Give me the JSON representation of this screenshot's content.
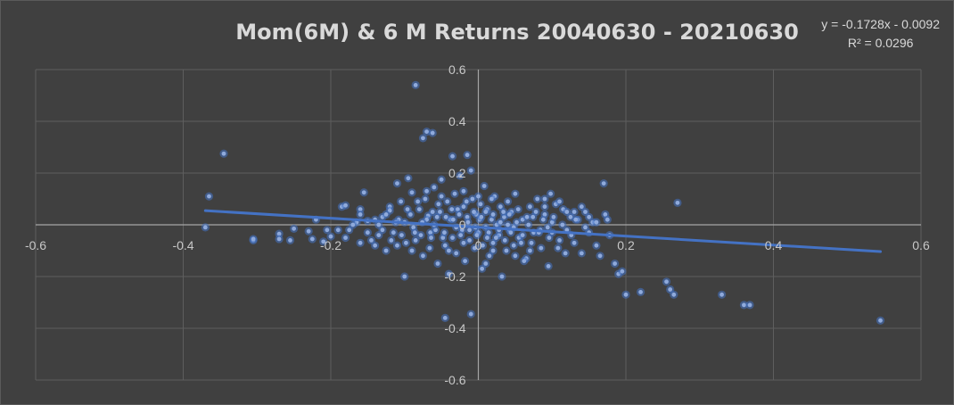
{
  "chart_data": {
    "type": "scatter",
    "title": "Mom(6M) & 6 M Returns 20040630 - 20210630",
    "xlabel": "",
    "ylabel": "",
    "xlim": [
      -0.6,
      0.6
    ],
    "ylim": [
      -0.6,
      0.6
    ],
    "x_ticks": [
      "-0.6",
      "-0.4",
      "-0.2",
      "0",
      "0.2",
      "0.4",
      "0.6"
    ],
    "y_ticks": [
      "-0.6",
      "-0.4",
      "-0.2",
      "0",
      "0.2",
      "0.4",
      "0.6"
    ],
    "grid": true,
    "legend": "none",
    "point_color": "#8faadc",
    "trendline": {
      "slope": -0.1728,
      "intercept": -0.0092,
      "x_range": [
        -0.37,
        0.545
      ],
      "color": "#4472c4",
      "equation": "y = -0.1728x - 0.0092",
      "r_squared": "R² = 0.0296"
    },
    "points": [
      [
        -0.085,
        0.54
      ],
      [
        -0.075,
        0.335
      ],
      [
        -0.07,
        0.36
      ],
      [
        -0.062,
        0.355
      ],
      [
        -0.035,
        0.265
      ],
      [
        -0.015,
        0.27
      ],
      [
        -0.345,
        0.275
      ],
      [
        -0.365,
        0.11
      ],
      [
        -0.37,
        -0.01
      ],
      [
        -0.305,
        -0.06
      ],
      [
        -0.305,
        -0.055
      ],
      [
        -0.27,
        -0.035
      ],
      [
        -0.27,
        -0.055
      ],
      [
        -0.255,
        -0.06
      ],
      [
        -0.25,
        -0.015
      ],
      [
        -0.23,
        -0.025
      ],
      [
        -0.225,
        -0.055
      ],
      [
        -0.22,
        0.02
      ],
      [
        -0.21,
        -0.065
      ],
      [
        -0.205,
        -0.02
      ],
      [
        -0.2,
        -0.045
      ],
      [
        -0.185,
        0.07
      ],
      [
        -0.18,
        0.075
      ],
      [
        -0.175,
        -0.02
      ],
      [
        -0.165,
        0.01
      ],
      [
        -0.16,
        0.06
      ],
      [
        -0.16,
        0.04
      ],
      [
        -0.155,
        0.125
      ],
      [
        -0.15,
        0.015
      ],
      [
        -0.145,
        -0.06
      ],
      [
        -0.14,
        -0.08
      ],
      [
        -0.135,
        -0.04
      ],
      [
        -0.13,
        0.03
      ],
      [
        -0.125,
        -0.1
      ],
      [
        -0.12,
        0.07
      ],
      [
        -0.11,
        0.16
      ],
      [
        -0.105,
        0.09
      ],
      [
        -0.1,
        0.01
      ],
      [
        -0.095,
        0.18
      ],
      [
        -0.09,
        0.125
      ],
      [
        -0.085,
        -0.06
      ],
      [
        -0.08,
        0.06
      ],
      [
        -0.075,
        -0.12
      ],
      [
        -0.072,
        0.1
      ],
      [
        -0.068,
        0.035
      ],
      [
        -0.065,
        -0.03
      ],
      [
        -0.06,
        0.145
      ],
      [
        -0.055,
        -0.15
      ],
      [
        -0.052,
        0.05
      ],
      [
        -0.05,
        0.175
      ],
      [
        -0.045,
        -0.08
      ],
      [
        -0.042,
        0.09
      ],
      [
        -0.04,
        -0.19
      ],
      [
        -0.038,
        0.02
      ],
      [
        -0.035,
        -0.05
      ],
      [
        -0.032,
        0.12
      ],
      [
        -0.03,
        -0.11
      ],
      [
        -0.028,
        0.06
      ],
      [
        -0.025,
        0.19
      ],
      [
        -0.022,
        -0.02
      ],
      [
        -0.02,
        0.07
      ],
      [
        -0.018,
        -0.14
      ],
      [
        -0.015,
        0.03
      ],
      [
        -0.012,
        -0.06
      ],
      [
        -0.01,
        0.21
      ],
      [
        -0.008,
        0.1
      ],
      [
        -0.005,
        -0.09
      ],
      [
        -0.003,
        0.04
      ],
      [
        0.0,
        -0.03
      ],
      [
        0.003,
        0.08
      ],
      [
        0.005,
        -0.17
      ],
      [
        0.008,
        0.15
      ],
      [
        0.01,
        -0.01
      ],
      [
        0.012,
        0.06
      ],
      [
        0.015,
        -0.12
      ],
      [
        0.018,
        0.02
      ],
      [
        0.02,
        -0.07
      ],
      [
        0.022,
        0.11
      ],
      [
        0.025,
        0.0
      ],
      [
        0.028,
        -0.04
      ],
      [
        0.03,
        0.07
      ],
      [
        0.032,
        -0.2
      ],
      [
        0.035,
        0.03
      ],
      [
        0.038,
        -0.1
      ],
      [
        0.04,
        0.09
      ],
      [
        0.042,
        -0.02
      ],
      [
        0.045,
        0.05
      ],
      [
        0.048,
        -0.08
      ],
      [
        0.05,
        0.12
      ],
      [
        0.055,
        -0.05
      ],
      [
        0.06,
        0.02
      ],
      [
        0.065,
        -0.13
      ],
      [
        0.07,
        0.07
      ],
      [
        0.075,
        -0.03
      ],
      [
        0.08,
        0.1
      ],
      [
        0.085,
        -0.09
      ],
      [
        0.09,
        0.04
      ],
      [
        0.095,
        -0.16
      ],
      [
        0.1,
        0.01
      ],
      [
        0.105,
        0.08
      ],
      [
        0.11,
        -0.06
      ],
      [
        0.115,
        0.06
      ],
      [
        0.12,
        -0.02
      ],
      [
        0.125,
        0.03
      ],
      [
        0.13,
        -0.07
      ],
      [
        0.135,
        0.02
      ],
      [
        0.14,
        -0.11
      ],
      [
        0.145,
        0.05
      ],
      [
        0.15,
        -0.03
      ],
      [
        0.155,
        0.01
      ],
      [
        0.16,
        -0.08
      ],
      [
        0.165,
        -0.12
      ],
      [
        0.17,
        0.16
      ],
      [
        0.172,
        0.04
      ],
      [
        0.175,
        0.02
      ],
      [
        0.178,
        -0.04
      ],
      [
        0.185,
        -0.15
      ],
      [
        0.19,
        -0.19
      ],
      [
        0.195,
        -0.18
      ],
      [
        0.2,
        -0.27
      ],
      [
        0.22,
        -0.26
      ],
      [
        0.255,
        -0.22
      ],
      [
        0.26,
        -0.25
      ],
      [
        0.265,
        -0.27
      ],
      [
        0.27,
        0.085
      ],
      [
        0.33,
        -0.27
      ],
      [
        0.36,
        -0.31
      ],
      [
        0.368,
        -0.31
      ],
      [
        0.545,
        -0.37
      ],
      [
        -0.045,
        -0.36
      ],
      [
        -0.01,
        -0.345
      ],
      [
        0.01,
        -0.15
      ],
      [
        -0.1,
        -0.2
      ],
      [
        -0.12,
        0.055
      ],
      [
        -0.115,
        -0.03
      ],
      [
        -0.108,
        0.02
      ],
      [
        -0.098,
        -0.07
      ],
      [
        -0.092,
        0.04
      ],
      [
        -0.088,
        -0.01
      ],
      [
        -0.082,
        0.09
      ],
      [
        -0.078,
        -0.04
      ],
      [
        -0.07,
        0.02
      ],
      [
        -0.066,
        -0.09
      ],
      [
        -0.062,
        0.05
      ],
      [
        -0.058,
        -0.02
      ],
      [
        -0.054,
        0.08
      ],
      [
        -0.048,
        -0.05
      ],
      [
        -0.044,
        0.03
      ],
      [
        -0.04,
        -0.1
      ],
      [
        -0.036,
        0.06
      ],
      [
        -0.03,
        -0.01
      ],
      [
        -0.026,
        0.04
      ],
      [
        -0.02,
        -0.07
      ],
      [
        -0.016,
        0.09
      ],
      [
        -0.012,
        -0.02
      ],
      [
        -0.006,
        0.05
      ],
      [
        -0.002,
        -0.04
      ],
      [
        0.002,
        0.02
      ],
      [
        0.006,
        -0.08
      ],
      [
        0.01,
        0.05
      ],
      [
        0.014,
        -0.03
      ],
      [
        0.018,
        0.1
      ],
      [
        0.024,
        -0.05
      ],
      [
        0.03,
        0.01
      ],
      [
        0.036,
        -0.06
      ],
      [
        0.042,
        0.04
      ],
      [
        0.048,
        -0.01
      ],
      [
        0.054,
        0.06
      ],
      [
        0.06,
        -0.04
      ],
      [
        0.066,
        0.03
      ],
      [
        0.072,
        -0.07
      ],
      [
        0.078,
        0.05
      ],
      [
        0.084,
        -0.02
      ],
      [
        0.09,
        0.07
      ],
      [
        0.096,
        -0.05
      ],
      [
        0.102,
        0.03
      ],
      [
        0.108,
        -0.09
      ],
      [
        0.114,
        0.0
      ],
      [
        0.12,
        0.05
      ],
      [
        0.126,
        -0.04
      ],
      [
        0.132,
        0.02
      ],
      [
        0.062,
        -0.14
      ],
      [
        -0.14,
        0.02
      ],
      [
        -0.13,
        -0.02
      ],
      [
        -0.125,
        0.04
      ],
      [
        -0.118,
        -0.06
      ],
      [
        -0.112,
        0.01
      ],
      [
        -0.104,
        -0.04
      ],
      [
        -0.096,
        0.06
      ],
      [
        -0.086,
        -0.03
      ],
      [
        -0.076,
        0.01
      ],
      [
        -0.064,
        -0.05
      ],
      [
        -0.056,
        0.03
      ],
      [
        -0.046,
        -0.03
      ],
      [
        -0.034,
        0.02
      ],
      [
        -0.024,
        -0.04
      ],
      [
        -0.014,
        0.01
      ],
      [
        -0.004,
        -0.01
      ],
      [
        0.004,
        0.03
      ],
      [
        0.012,
        -0.05
      ],
      [
        0.02,
        0.04
      ],
      [
        0.028,
        -0.02
      ],
      [
        0.034,
        0.05
      ],
      [
        0.044,
        -0.03
      ],
      [
        0.052,
        0.01
      ],
      [
        0.058,
        -0.07
      ],
      [
        0.068,
        0.0
      ],
      [
        0.074,
        0.03
      ],
      [
        0.082,
        -0.03
      ],
      [
        0.088,
        0.02
      ],
      [
        0.094,
        -0.01
      ],
      [
        0.1,
        -0.03
      ],
      [
        -0.18,
        -0.05
      ],
      [
        -0.17,
        0.0
      ],
      [
        -0.19,
        -0.02
      ],
      [
        -0.15,
        -0.03
      ],
      [
        -0.135,
        0.0
      ],
      [
        -0.16,
        -0.07
      ],
      [
        -0.11,
        -0.08
      ],
      [
        -0.09,
        -0.1
      ],
      [
        -0.06,
        0.0
      ],
      [
        0.04,
        0.0
      ],
      [
        0.07,
        -0.1
      ],
      [
        0.11,
        0.09
      ],
      [
        0.13,
        0.05
      ],
      [
        0.145,
        -0.01
      ],
      [
        0.15,
        0.03
      ],
      [
        0.16,
        0.01
      ],
      [
        0.098,
        0.12
      ],
      [
        0.05,
        -0.12
      ],
      [
        -0.02,
        0.13
      ],
      [
        0.0,
        0.11
      ],
      [
        0.02,
        -0.1
      ],
      [
        -0.05,
        0.11
      ],
      [
        -0.07,
        0.13
      ],
      [
        0.09,
        0.1
      ],
      [
        0.118,
        -0.11
      ],
      [
        0.14,
        0.07
      ]
    ]
  }
}
